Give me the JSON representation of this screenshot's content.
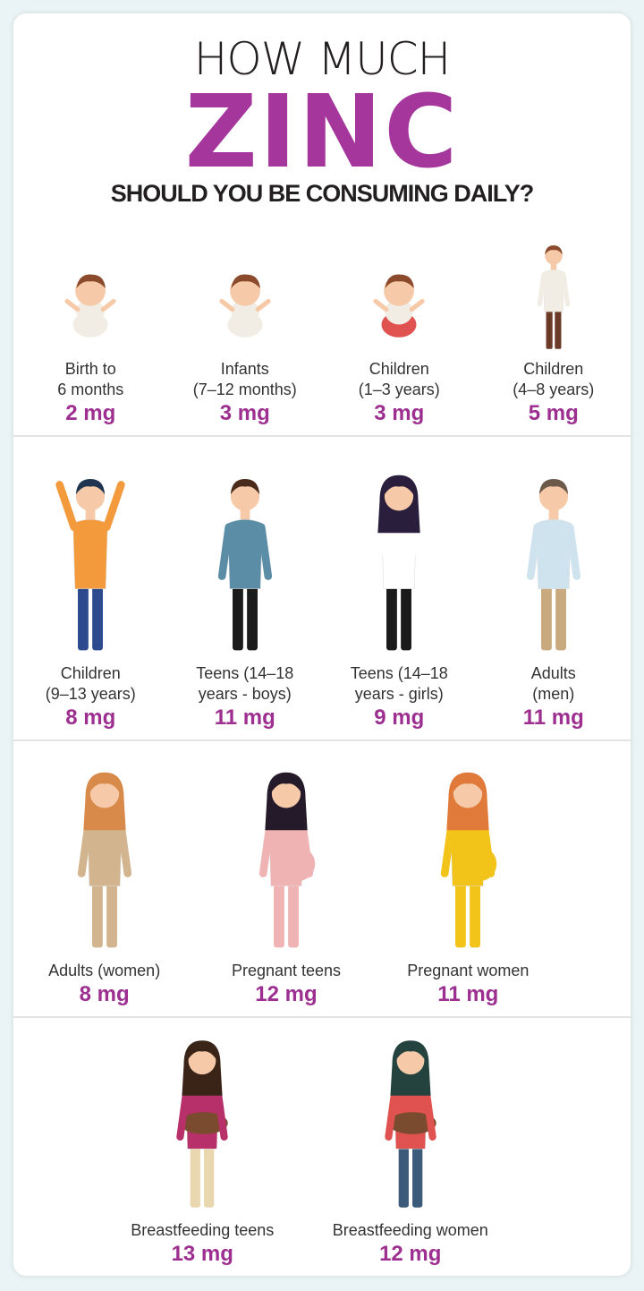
{
  "title": {
    "line1": "HOW MUCH",
    "line2": "ZINC",
    "line3": "SHOULD YOU BE CONSUMING DAILY?"
  },
  "colors": {
    "accent": "#a5369b",
    "text": "#231f20",
    "background": "#eaf3f5"
  },
  "rows": [
    {
      "items": [
        {
          "label": "Birth to\n6 months",
          "amount": "2 mg",
          "icon": "newborn-baby-icon",
          "shirt": "#f1ede4",
          "pants": "#f1ede4",
          "hair": "#8b4a2b"
        },
        {
          "label": "Infants\n(7–12 months)",
          "amount": "3 mg",
          "icon": "crawling-infant-icon",
          "shirt": "#f1ede4",
          "pants": "#f1ede4",
          "hair": "#8b4a2b"
        },
        {
          "label": "Children\n(1–3 years)",
          "amount": "3 mg",
          "icon": "toddler-icon",
          "shirt": "#f1ede4",
          "pants": "#e0524f",
          "hair": "#8b4a2b"
        },
        {
          "label": "Children\n(4–8 years)",
          "amount": "5 mg",
          "icon": "child-icon",
          "shirt": "#f1ede4",
          "pants": "#6b3a27",
          "hair": "#8b4a2b"
        }
      ]
    },
    {
      "items": [
        {
          "label": "Children\n(9–13 years)",
          "amount": "8 mg",
          "icon": "child-arms-up-icon",
          "shirt": "#f39a3c",
          "pants": "#2d4a8f",
          "hair": "#1f3450"
        },
        {
          "label": "Teens (14–18\nyears - boys)",
          "amount": "11 mg",
          "icon": "teen-boy-icon",
          "shirt": "#5b8ea6",
          "pants": "#1b1b1b",
          "hair": "#4a2a1a"
        },
        {
          "label": "Teens (14–18\nyears - girls)",
          "amount": "9 mg",
          "icon": "teen-girl-icon",
          "shirt": "#ffffff",
          "pants": "#1b1b1b",
          "hair": "#2a1e3d"
        },
        {
          "label": "Adults\n(men)",
          "amount": "11 mg",
          "icon": "adult-man-icon",
          "shirt": "#cfe3ee",
          "pants": "#c9a97e",
          "hair": "#6b5a4a"
        }
      ]
    },
    {
      "items": [
        {
          "label": "Adults (women)",
          "amount": "8 mg",
          "icon": "adult-woman-icon",
          "shirt": "#d2b58e",
          "pants": "#d2b58e",
          "hair": "#d88a4a"
        },
        {
          "label": "Pregnant teens",
          "amount": "12 mg",
          "icon": "pregnant-teen-icon",
          "shirt": "#f0b3b3",
          "pants": "#f0b3b3",
          "hair": "#241a2a"
        },
        {
          "label": "Pregnant women",
          "amount": "11 mg",
          "icon": "pregnant-woman-icon",
          "shirt": "#f2c319",
          "pants": "#f2c319",
          "hair": "#e07a3a"
        }
      ]
    },
    {
      "items": [
        {
          "label": "Breastfeeding teens",
          "amount": "13 mg",
          "icon": "breastfeeding-teen-icon",
          "shirt": "#b8306a",
          "pants": "#e9d7b0",
          "hair": "#3a2418"
        },
        {
          "label": "Breastfeeding women",
          "amount": "12 mg",
          "icon": "breastfeeding-woman-icon",
          "shirt": "#e0524f",
          "pants": "#3c5a7a",
          "hair": "#24433f"
        }
      ]
    }
  ]
}
